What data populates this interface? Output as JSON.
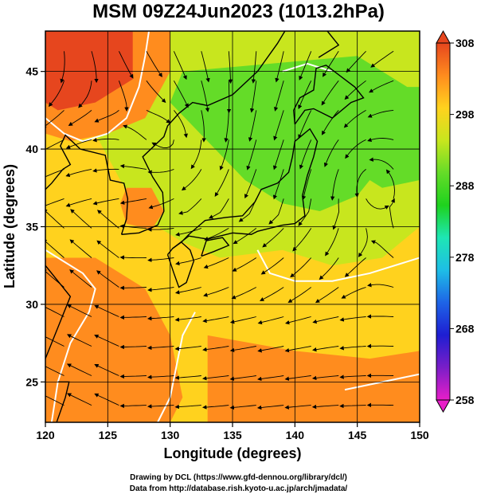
{
  "title": "MSM 09Z24Jun2023 (1013.2hPa)",
  "x_axis": {
    "label": "Longitude (degrees)",
    "ticks": [
      120,
      125,
      130,
      135,
      140,
      145,
      150
    ],
    "range": [
      120,
      150
    ]
  },
  "y_axis": {
    "label": "Latitude  (degrees)",
    "ticks": [
      25,
      30,
      35,
      40,
      45
    ],
    "range": [
      22.4,
      47.6
    ]
  },
  "colorbar": {
    "ticks": [
      308,
      298,
      288,
      278,
      268,
      258
    ],
    "range": [
      258,
      308
    ],
    "colors": [
      "#e81ec8",
      "#7a1ec8",
      "#1e1ed2",
      "#1e64e6",
      "#1ebee6",
      "#1ee6b4",
      "#1ed21e",
      "#64dc28",
      "#c8e61e",
      "#ffd21e",
      "#ff8c1e",
      "#e6461e"
    ]
  },
  "credits": {
    "line1": "Drawing by DCL (https://www.gfd-dennou.org/library/dcl/)",
    "line2": "Data from http://database.rish.kyoto-u.ac.jp/arch/jmadata/"
  },
  "colors": {
    "hot": "#e6461e",
    "warm": "#ff8c1e",
    "mild": "#ffd21e",
    "cool": "#c8e61e",
    "cold": "#64dc28",
    "contour": "#ffffff",
    "coastline": "#000000",
    "streamline": "#000000"
  }
}
